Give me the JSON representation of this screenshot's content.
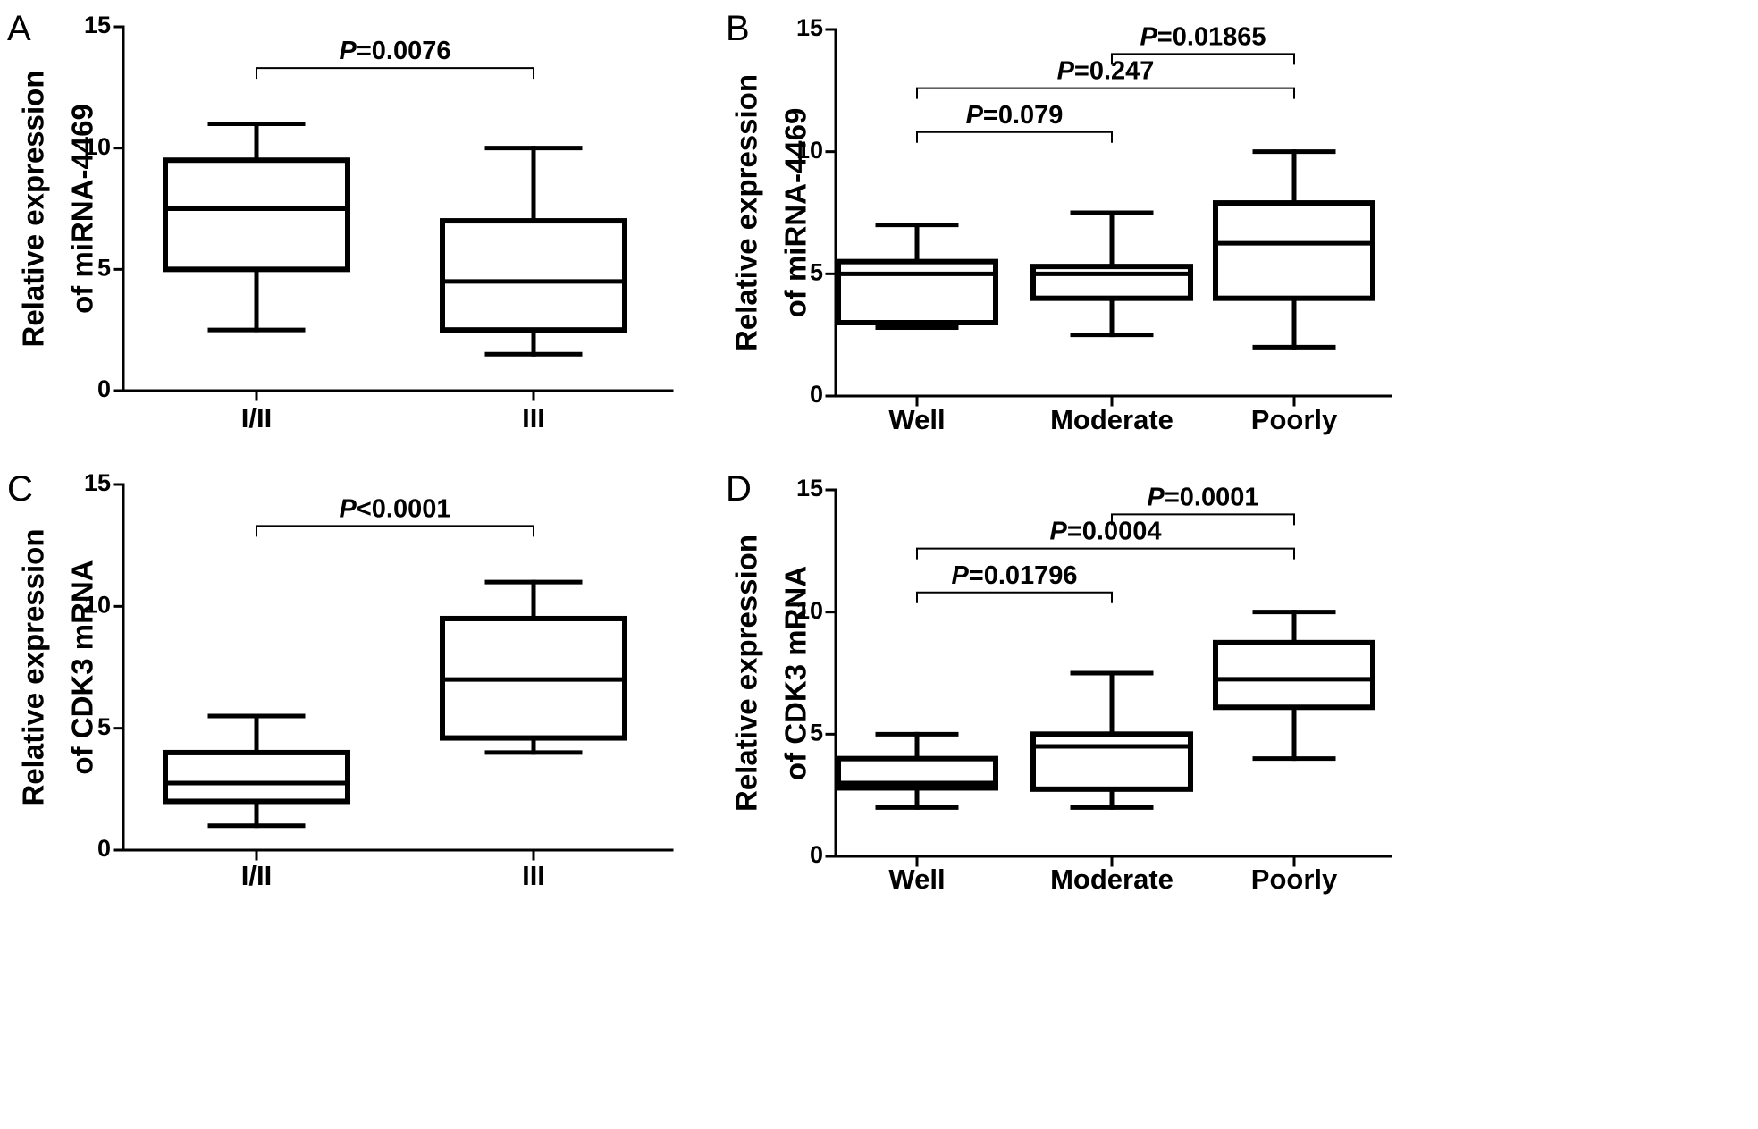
{
  "chart_data": [
    {
      "panel": "A",
      "type": "box",
      "ylabel_lines": [
        "Relative expression",
        "of miRNA-4469"
      ],
      "ylim": [
        0,
        15
      ],
      "yticks": [
        "0",
        "5",
        "10",
        "15"
      ],
      "categories": [
        "I/II",
        "III"
      ],
      "boxes": [
        {
          "min": 2.5,
          "q1": 5.0,
          "median": 7.5,
          "q3": 9.5,
          "max": 11.0
        },
        {
          "min": 1.5,
          "q1": 2.5,
          "median": 4.5,
          "q3": 7.0,
          "max": 10.0
        }
      ],
      "comparisons": [
        {
          "groups": [
            0,
            1
          ],
          "at": 13.3,
          "prefix": "P",
          "text": "=0.0076"
        }
      ]
    },
    {
      "panel": "B",
      "type": "box",
      "ylabel_lines": [
        "Relative expression",
        "of miRNA-4469"
      ],
      "ylim": [
        0,
        15
      ],
      "yticks": [
        "0",
        "5",
        "10",
        "15"
      ],
      "categories": [
        "Well",
        "Moderate",
        "Poorly"
      ],
      "boxes": [
        {
          "min": 2.8,
          "q1": 3.0,
          "median": 5.0,
          "q3": 5.5,
          "max": 7.0
        },
        {
          "min": 2.5,
          "q1": 4.0,
          "median": 5.0,
          "q3": 5.3,
          "max": 7.5
        },
        {
          "min": 2.0,
          "q1": 4.0,
          "median": 6.25,
          "q3": 7.9,
          "max": 10.0
        }
      ],
      "comparisons": [
        {
          "groups": [
            1,
            2
          ],
          "at": 14.0,
          "prefix": "P",
          "text": "=0.01865"
        },
        {
          "groups": [
            0,
            2
          ],
          "at": 12.6,
          "prefix": "P",
          "text": "=0.247"
        },
        {
          "groups": [
            0,
            1
          ],
          "at": 10.8,
          "prefix": "P",
          "text": "=0.079"
        }
      ]
    },
    {
      "panel": "C",
      "type": "box",
      "ylabel_lines": [
        "Relative expression",
        "of CDK3 mRNA"
      ],
      "ylim": [
        0,
        15
      ],
      "yticks": [
        "0",
        "5",
        "10",
        "15"
      ],
      "categories": [
        "I/II",
        "III"
      ],
      "boxes": [
        {
          "min": 1.0,
          "q1": 2.0,
          "median": 2.75,
          "q3": 4.0,
          "max": 5.5
        },
        {
          "min": 4.0,
          "q1": 4.6,
          "median": 7.0,
          "q3": 9.5,
          "max": 11.0
        }
      ],
      "comparisons": [
        {
          "groups": [
            0,
            1
          ],
          "at": 13.3,
          "prefix": "P",
          "text": "<0.0001"
        }
      ]
    },
    {
      "panel": "D",
      "type": "box",
      "ylabel_lines": [
        "Relative expression",
        "of CDK3 mRNA"
      ],
      "ylim": [
        0,
        15
      ],
      "yticks": [
        "0",
        "5",
        "10",
        "15"
      ],
      "categories": [
        "Well",
        "Moderate",
        "Poorly"
      ],
      "boxes": [
        {
          "min": 2.0,
          "q1": 2.8,
          "median": 3.0,
          "q3": 4.0,
          "max": 5.0
        },
        {
          "min": 2.0,
          "q1": 2.75,
          "median": 4.5,
          "q3": 5.0,
          "max": 7.5
        },
        {
          "min": 4.0,
          "q1": 6.1,
          "median": 7.25,
          "q3": 8.75,
          "max": 10.0
        }
      ],
      "comparisons": [
        {
          "groups": [
            1,
            2
          ],
          "at": 14.0,
          "prefix": "P",
          "text": "=0.0001"
        },
        {
          "groups": [
            0,
            2
          ],
          "at": 12.6,
          "prefix": "P",
          "text": "=0.0004"
        },
        {
          "groups": [
            0,
            1
          ],
          "at": 10.8,
          "prefix": "P",
          "text": "=0.01796"
        }
      ]
    }
  ]
}
